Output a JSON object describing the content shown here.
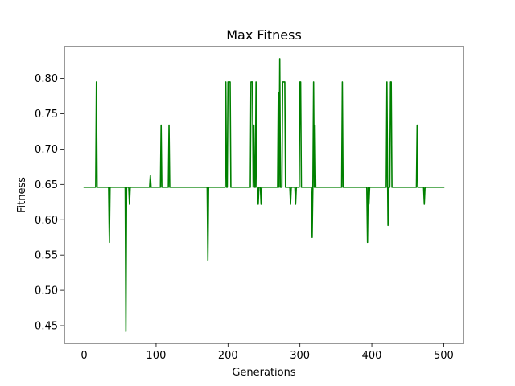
{
  "chart_data": {
    "type": "line",
    "title": "Max Fitness",
    "xlabel": "Generations",
    "ylabel": "Fitness",
    "xlim": [
      -27.5,
      527.5
    ],
    "ylim": [
      0.425,
      0.845
    ],
    "xticks": [
      0,
      100,
      200,
      300,
      400,
      500
    ],
    "yticks": [
      0.45,
      0.5,
      0.55,
      0.6,
      0.65,
      0.7,
      0.75,
      0.8
    ],
    "grid": false,
    "series": [
      {
        "color": "#008000",
        "baseline": 0.646,
        "points": [
          [
            0,
            0.646
          ],
          [
            16,
            0.646
          ],
          [
            17,
            0.795
          ],
          [
            18,
            0.646
          ],
          [
            34,
            0.646
          ],
          [
            35,
            0.568
          ],
          [
            36,
            0.646
          ],
          [
            57,
            0.646
          ],
          [
            58,
            0.442
          ],
          [
            59,
            0.646
          ],
          [
            62,
            0.646
          ],
          [
            63,
            0.622
          ],
          [
            64,
            0.646
          ],
          [
            91,
            0.646
          ],
          [
            92,
            0.663
          ],
          [
            93,
            0.646
          ],
          [
            106,
            0.646
          ],
          [
            107,
            0.734
          ],
          [
            108,
            0.646
          ],
          [
            117,
            0.646
          ],
          [
            118,
            0.734
          ],
          [
            119,
            0.646
          ],
          [
            171,
            0.646
          ],
          [
            172,
            0.543
          ],
          [
            173,
            0.646
          ],
          [
            196,
            0.646
          ],
          [
            197,
            0.795
          ],
          [
            198,
            0.646
          ],
          [
            199,
            0.646
          ],
          [
            200,
            0.795
          ],
          [
            203,
            0.795
          ],
          [
            204,
            0.646
          ],
          [
            231,
            0.646
          ],
          [
            232,
            0.795
          ],
          [
            234,
            0.795
          ],
          [
            235,
            0.646
          ],
          [
            236,
            0.734
          ],
          [
            237,
            0.646
          ],
          [
            238,
            0.646
          ],
          [
            239,
            0.795
          ],
          [
            240,
            0.646
          ],
          [
            241,
            0.646
          ],
          [
            242,
            0.622
          ],
          [
            243,
            0.646
          ],
          [
            245,
            0.646
          ],
          [
            246,
            0.622
          ],
          [
            247,
            0.646
          ],
          [
            269,
            0.646
          ],
          [
            270,
            0.78
          ],
          [
            271,
            0.646
          ],
          [
            272,
            0.828
          ],
          [
            273,
            0.646
          ],
          [
            275,
            0.646
          ],
          [
            276,
            0.795
          ],
          [
            279,
            0.795
          ],
          [
            280,
            0.646
          ],
          [
            286,
            0.646
          ],
          [
            287,
            0.622
          ],
          [
            288,
            0.646
          ],
          [
            293,
            0.646
          ],
          [
            294,
            0.622
          ],
          [
            295,
            0.646
          ],
          [
            299,
            0.646
          ],
          [
            300,
            0.795
          ],
          [
            301,
            0.795
          ],
          [
            302,
            0.646
          ],
          [
            316,
            0.646
          ],
          [
            317,
            0.575
          ],
          [
            318,
            0.646
          ],
          [
            319,
            0.795
          ],
          [
            320,
            0.646
          ],
          [
            321,
            0.734
          ],
          [
            322,
            0.646
          ],
          [
            358,
            0.646
          ],
          [
            359,
            0.795
          ],
          [
            360,
            0.646
          ],
          [
            393,
            0.646
          ],
          [
            394,
            0.568
          ],
          [
            395,
            0.646
          ],
          [
            396,
            0.622
          ],
          [
            397,
            0.646
          ],
          [
            420,
            0.646
          ],
          [
            421,
            0.795
          ],
          [
            422,
            0.646
          ],
          [
            422.5,
            0.592
          ],
          [
            423.5,
            0.646
          ],
          [
            425,
            0.646
          ],
          [
            426,
            0.795
          ],
          [
            427,
            0.795
          ],
          [
            428,
            0.646
          ],
          [
            462,
            0.646
          ],
          [
            463,
            0.734
          ],
          [
            464,
            0.646
          ],
          [
            472,
            0.646
          ],
          [
            473,
            0.622
          ],
          [
            474,
            0.646
          ],
          [
            500,
            0.646
          ]
        ]
      }
    ]
  }
}
